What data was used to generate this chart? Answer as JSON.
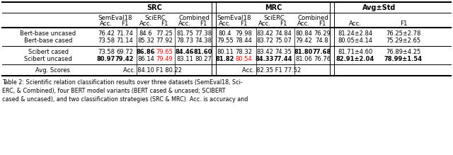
{
  "rows_data": [
    {
      "name": "Bert-base uncased",
      "vals": [
        "76.42",
        "71.74",
        "84.6",
        "77.25",
        "81.75",
        "77.38",
        "80.4",
        "79.98",
        "83.42",
        "74.84",
        "80.84",
        "76.29"
      ],
      "avg_acc": "81.24±2.84",
      "avg_f1": "76.25±2.78",
      "bold": [],
      "red": [],
      "bold_avg": false
    },
    {
      "name": "Bert-base cased",
      "vals": [
        "73.58",
        "71.14",
        "85.32",
        "77.92",
        "78.73",
        "74.38",
        "79.55",
        "78.44",
        "83.72",
        "75.07",
        "79.42",
        "74.8"
      ],
      "avg_acc": "80.05±4.14",
      "avg_f1": "75.29±2.65",
      "bold": [],
      "red": [],
      "bold_avg": false
    },
    {
      "name": "Scibert cased",
      "vals": [
        "73.58",
        "69.72",
        "86.86",
        "79.65",
        "84.46",
        "81.60",
        "80.11",
        "78.32",
        "83.42",
        "74.35",
        "81.80",
        "77.68"
      ],
      "avg_acc": "81.71±4.60",
      "avg_f1": "76.89±4.25",
      "bold": [
        2,
        4,
        5,
        10,
        11
      ],
      "red": [
        3
      ],
      "bold_avg": false
    },
    {
      "name": "Scibert uncased",
      "vals": [
        "80.97",
        "79.42",
        "86.14",
        "79.49",
        "83.11",
        "80.27",
        "81.82",
        "80.54",
        "84.33",
        "77.44",
        "81.06",
        "76.76"
      ],
      "avg_acc": "82.91±2.04",
      "avg_f1": "78.99±1.54",
      "bold": [
        0,
        1,
        6,
        8,
        9
      ],
      "red": [
        3,
        7
      ],
      "bold_avg": true
    }
  ],
  "avg_src": "Acc. 84.10 F1 80.22",
  "avg_mrc": "Acc. 82.35 F1 77.52",
  "caption": "Table 2: Scientific relation classification results over three datasets (SemEval18, Sci-\nERC, & Combined), four BERT model variants (BERT cased & uncased; SCIBERT\ncased & uncased), and two classification strategies (SRC & MRC). Acc. is accuracy and"
}
